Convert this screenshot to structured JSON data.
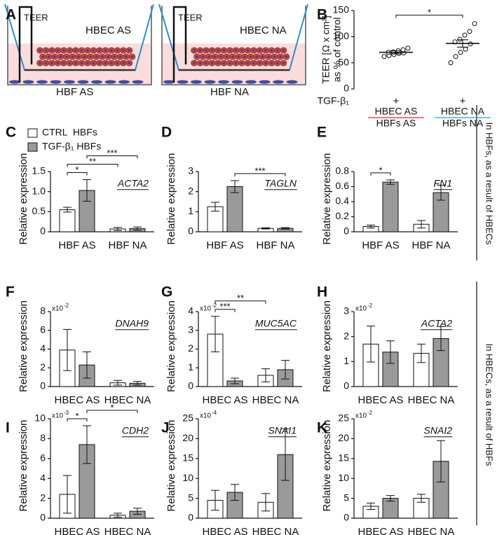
{
  "panel_labels": [
    "A",
    "B",
    "C",
    "D",
    "E",
    "F",
    "G",
    "H",
    "I",
    "J",
    "K"
  ],
  "diagram": {
    "teer_left": "TEER",
    "epithelium_left": "HBEC AS",
    "fibroblast_left": "HBF AS",
    "teer_right": "TEER",
    "epithelium_right": "HBEC NA",
    "fibroblast_right": "HBF NA"
  },
  "side_labels": [
    "In HBFs, as a result of HBECs",
    "In HBECs, as a result of HBFs"
  ],
  "chart_data": [
    {
      "type": "dot",
      "ylabel": [
        "TEER [Ω x cm²]",
        "as % of control"
      ],
      "treatment_label": "TGF-β₁",
      "treatment_marks": [
        "+",
        "+"
      ],
      "categories": [
        "HBEC AS",
        "HBEC NA"
      ],
      "category_sublabels": [
        "HBFs AS",
        "HBFs NA"
      ],
      "category_colors": [
        "#e3262b",
        "#1ea2db"
      ],
      "points": [
        [
          62,
          64,
          66,
          68,
          69,
          70,
          71,
          73,
          75,
          78
        ],
        [
          50,
          62,
          70,
          76,
          86,
          90,
          95,
          103,
          110,
          125
        ]
      ],
      "means": [
        70,
        87
      ],
      "errors": [
        3,
        7
      ],
      "ylim": [
        0,
        150
      ],
      "yticks": [
        0,
        50,
        100,
        150
      ],
      "significance": [
        {
          "from": 0,
          "to": 1,
          "label": "*"
        }
      ]
    },
    {
      "type": "bar",
      "title": "ACTA2",
      "ylabel": "Relative expression",
      "categories": [
        "HBF AS",
        "HBF NA"
      ],
      "category_colors": [
        "#e3262b",
        "#1ea2db"
      ],
      "series": [
        {
          "name": "CTRL  HBFs",
          "color": "#ffffff",
          "values": [
            0.55,
            0.07
          ],
          "errors": [
            0.06,
            0.04
          ]
        },
        {
          "name": "TGF-β₁ HBFs",
          "color": "#9a9a9a",
          "values": [
            1.03,
            0.08
          ],
          "errors": [
            0.27,
            0.04
          ]
        }
      ],
      "ylim": [
        0,
        1.5
      ],
      "yticks": [
        0,
        0.5,
        {
          "value": 1,
          "label": "1.0"
        },
        1.5
      ],
      "legend": true,
      "significance": [
        {
          "from": [
            0,
            0
          ],
          "to": [
            0,
            1
          ],
          "label": "*"
        },
        {
          "from": [
            0,
            0
          ],
          "to": [
            1,
            0
          ],
          "label": "**"
        },
        {
          "from": [
            0,
            1
          ],
          "to": [
            1,
            1
          ],
          "label": "***"
        }
      ]
    },
    {
      "type": "bar",
      "title": "TAGLN",
      "ylabel": "Relative expression",
      "categories": [
        "HBF AS",
        "HBF NA"
      ],
      "category_colors": [
        "#e3262b",
        "#1ea2db"
      ],
      "series": [
        {
          "color": "#ffffff",
          "values": [
            1.25,
            0.17
          ],
          "errors": [
            0.22,
            0.03
          ]
        },
        {
          "color": "#9a9a9a",
          "values": [
            2.25,
            0.17
          ],
          "errors": [
            0.3,
            0.04
          ]
        }
      ],
      "ylim": [
        0,
        3
      ],
      "yticks": [
        0,
        1,
        2,
        3
      ],
      "significance": [
        {
          "from": [
            0,
            1
          ],
          "to": [
            1,
            1
          ],
          "label": "***"
        }
      ]
    },
    {
      "type": "bar",
      "title": "FN1",
      "ylabel": "Relative expression",
      "categories": [
        "HBF AS",
        "HBF NA"
      ],
      "category_colors": [
        "#e3262b",
        "#1ea2db"
      ],
      "series": [
        {
          "color": "#ffffff",
          "values": [
            0.07,
            0.1
          ],
          "errors": [
            0.02,
            0.05
          ]
        },
        {
          "color": "#9a9a9a",
          "values": [
            0.66,
            0.52
          ],
          "errors": [
            0.03,
            0.1
          ]
        }
      ],
      "ylim": [
        0,
        0.8
      ],
      "yticks": [
        0,
        0.2,
        0.4,
        0.6,
        0.8
      ],
      "significance": [
        {
          "from": [
            0,
            0
          ],
          "to": [
            0,
            1
          ],
          "label": "*"
        }
      ]
    },
    {
      "type": "bar",
      "title": "DNAH9",
      "ylabel": "Relative expression",
      "multiplier": "x10",
      "multiplier_exponent": "-2",
      "categories": [
        "HBEC AS",
        "HBEC NA"
      ],
      "category_colors": [
        "#e3262b",
        "#1ea2db"
      ],
      "series": [
        {
          "color": "#ffffff",
          "values": [
            3.9,
            0.4
          ],
          "errors": [
            2.2,
            0.25
          ]
        },
        {
          "color": "#9a9a9a",
          "values": [
            2.3,
            0.35
          ],
          "errors": [
            1.4,
            0.2
          ]
        }
      ],
      "ylim": [
        0,
        8
      ],
      "yticks": [
        0,
        2,
        4,
        6,
        8
      ],
      "significance": []
    },
    {
      "type": "bar",
      "title": "MUC5AC",
      "ylabel": "Relative expression",
      "multiplier": "x10",
      "multiplier_exponent": "-2",
      "categories": [
        "HBEC AS",
        "HBEC NA"
      ],
      "category_colors": [
        "#e3262b",
        "#1ea2db"
      ],
      "series": [
        {
          "color": "#ffffff",
          "values": [
            2.8,
            0.6
          ],
          "errors": [
            0.95,
            0.35
          ]
        },
        {
          "color": "#9a9a9a",
          "values": [
            0.3,
            0.9
          ],
          "errors": [
            0.15,
            0.5
          ]
        }
      ],
      "ylim": [
        0,
        4
      ],
      "yticks": [
        0,
        1,
        2,
        3,
        4
      ],
      "significance": [
        {
          "from": [
            0,
            0
          ],
          "to": [
            0,
            1
          ],
          "label": "***"
        },
        {
          "from": [
            0,
            0
          ],
          "to": [
            1,
            0
          ],
          "label": "**"
        }
      ]
    },
    {
      "type": "bar",
      "title": "ACTA2",
      "ylabel": "Relative expression",
      "multiplier": "x10",
      "multiplier_exponent": "-2",
      "categories": [
        "HBEC AS",
        "HBEC NA"
      ],
      "category_colors": [
        "#e3262b",
        "#1ea2db"
      ],
      "series": [
        {
          "color": "#ffffff",
          "values": [
            1.7,
            1.33
          ],
          "errors": [
            0.72,
            0.37
          ]
        },
        {
          "color": "#9a9a9a",
          "values": [
            1.38,
            1.92
          ],
          "errors": [
            0.45,
            0.48
          ]
        }
      ],
      "ylim": [
        0,
        3
      ],
      "yticks": [
        0,
        1,
        2,
        3
      ],
      "significance": []
    },
    {
      "type": "bar",
      "title": "CDH2",
      "ylabel": "Relative expression",
      "multiplier": "x10",
      "multiplier_exponent": "-3",
      "categories": [
        "HBEC AS",
        "HBEC NA"
      ],
      "category_colors": [
        "#e3262b",
        "#1ea2db"
      ],
      "series": [
        {
          "color": "#ffffff",
          "values": [
            2.4,
            0.3
          ],
          "errors": [
            1.9,
            0.2
          ]
        },
        {
          "color": "#9a9a9a",
          "values": [
            7.4,
            0.7
          ],
          "errors": [
            1.9,
            0.3
          ]
        }
      ],
      "ylim": [
        0,
        10
      ],
      "yticks": [
        0,
        2,
        4,
        6,
        8,
        10
      ],
      "significance": [
        {
          "from": [
            0,
            0
          ],
          "to": [
            0,
            1
          ],
          "label": "*"
        },
        {
          "from": [
            0,
            1
          ],
          "to": [
            1,
            1
          ],
          "label": "*"
        }
      ]
    },
    {
      "type": "bar",
      "title": "SNAI1",
      "ylabel": "Relative expression",
      "multiplier": "x10",
      "multiplier_exponent": "-4",
      "categories": [
        "HBEC AS",
        "HBEC NA"
      ],
      "category_colors": [
        "#e3262b",
        "#1ea2db"
      ],
      "series": [
        {
          "color": "#ffffff",
          "values": [
            4.5,
            4
          ],
          "errors": [
            2.5,
            2.2
          ]
        },
        {
          "color": "#9a9a9a",
          "values": [
            6.5,
            16
          ],
          "errors": [
            2,
            6.5
          ]
        }
      ],
      "ylim": [
        0,
        25
      ],
      "yticks": [
        0,
        5,
        10,
        15,
        20,
        25
      ],
      "significance": []
    },
    {
      "type": "bar",
      "title": "SNAI2",
      "ylabel": "Relative expression",
      "multiplier": "x10",
      "multiplier_exponent": "-2",
      "categories": [
        "HBEC AS",
        "HBEC NA"
      ],
      "category_colors": [
        "#e3262b",
        "#1ea2db"
      ],
      "series": [
        {
          "color": "#ffffff",
          "values": [
            3,
            5
          ],
          "errors": [
            0.8,
            1
          ]
        },
        {
          "color": "#9a9a9a",
          "values": [
            5,
            14.3
          ],
          "errors": [
            0.7,
            5.2
          ]
        }
      ],
      "ylim": [
        0,
        25
      ],
      "yticks": [
        0,
        5,
        10,
        15,
        20,
        25
      ],
      "significance": []
    }
  ]
}
